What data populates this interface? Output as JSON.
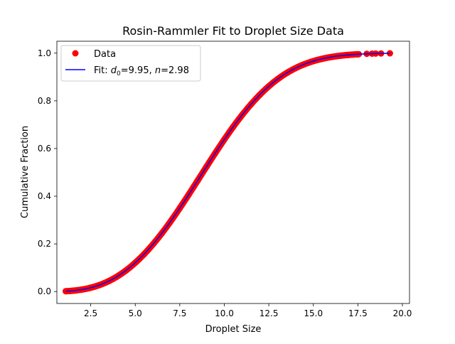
{
  "chart_data": {
    "type": "scatter",
    "title": "Rosin-Rammler Fit to Droplet Size Data",
    "xlabel": "Droplet Size",
    "ylabel": "Cumulative Fraction",
    "xlim": [
      0.6,
      20.4
    ],
    "ylim": [
      -0.05,
      1.05
    ],
    "xticks": [
      2.5,
      5.0,
      7.5,
      10.0,
      12.5,
      15.0,
      17.5,
      20.0
    ],
    "xtick_labels": [
      "2.5",
      "5.0",
      "7.5",
      "10.0",
      "12.5",
      "15.0",
      "17.5",
      "20.0"
    ],
    "yticks": [
      0.0,
      0.2,
      0.4,
      0.6,
      0.8,
      1.0
    ],
    "ytick_labels": [
      "0.0",
      "0.2",
      "0.4",
      "0.6",
      "0.8",
      "1.0"
    ],
    "grid": false,
    "legend_position": "upper left",
    "series": [
      {
        "name": "Data",
        "kind": "scatter",
        "color": "#ff0000",
        "x_range": [
          1.1,
          19.3
        ],
        "x_points": [
          1.1,
          1.5,
          2.0,
          2.5,
          3.0,
          3.5,
          4.0,
          4.5,
          5.0,
          5.5,
          6.0,
          6.5,
          7.0,
          7.5,
          8.0,
          8.5,
          9.0,
          9.5,
          10.0,
          10.5,
          11.0,
          11.5,
          12.0,
          12.5,
          13.0,
          13.5,
          14.0,
          14.5,
          15.0,
          15.5,
          16.0,
          16.5,
          17.0,
          17.5,
          18.0,
          18.3,
          18.5,
          18.8,
          19.3
        ]
      },
      {
        "name": "Fit",
        "kind": "line",
        "color": "#0000ff",
        "model": "rosin-rammler",
        "d0": 9.95,
        "n": 2.98,
        "x_range": [
          1.1,
          19.3
        ]
      }
    ],
    "legend": {
      "data_label": "Data",
      "fit_prefix": "Fit: ",
      "d_symbol": "d",
      "d_subscript": "0",
      "d_value": "=9.95, ",
      "n_symbol": "n",
      "n_value": "=2.98"
    }
  }
}
